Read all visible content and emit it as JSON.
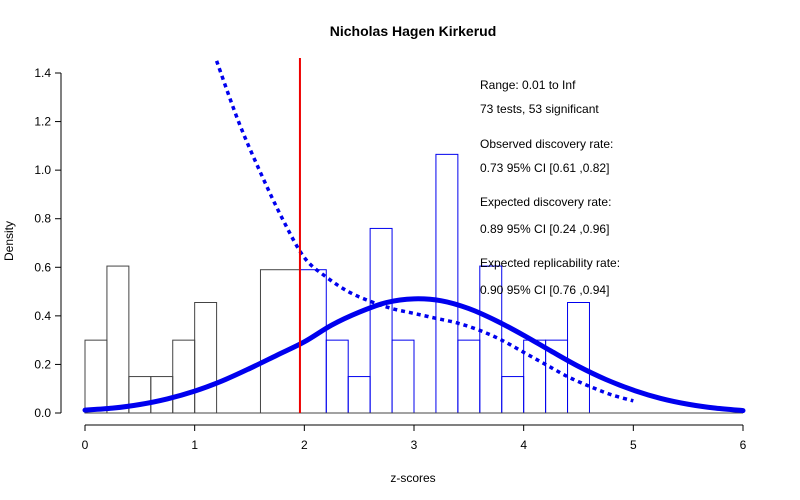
{
  "chart_data": {
    "type": "bar",
    "title": "Nicholas Hagen Kirkerud",
    "xlabel": "z-scores",
    "ylabel": "Density",
    "xlim": [
      0,
      6
    ],
    "ylim": [
      0,
      1.4
    ],
    "x_ticks": [
      "0",
      "1",
      "2",
      "3",
      "4",
      "5",
      "6"
    ],
    "y_ticks": [
      "0.0",
      "0.2",
      "0.4",
      "0.6",
      "0.8",
      "1.0",
      "1.2",
      "1.4"
    ],
    "grid": false,
    "colors": {
      "nonsig_bars": "#444444",
      "sig_bars": "#0000ee",
      "threshold_line": "#ee0000",
      "curve": "#0000ee"
    },
    "threshold": 1.96,
    "histogram": {
      "bin_width": 0.2,
      "bins": [
        {
          "x0": 0.0,
          "x1": 0.2,
          "density": 0.3,
          "significant": false
        },
        {
          "x0": 0.2,
          "x1": 0.4,
          "density": 0.605,
          "significant": false
        },
        {
          "x0": 0.4,
          "x1": 0.6,
          "density": 0.15,
          "significant": false
        },
        {
          "x0": 0.6,
          "x1": 0.8,
          "density": 0.15,
          "significant": false
        },
        {
          "x0": 0.8,
          "x1": 1.0,
          "density": 0.3,
          "significant": false
        },
        {
          "x0": 1.0,
          "x1": 1.2,
          "density": 0.455,
          "significant": false
        },
        {
          "x0": 1.6,
          "x1": 1.96,
          "density": 0.59,
          "significant": false
        },
        {
          "x0": 1.96,
          "x1": 2.2,
          "density": 0.59,
          "significant": true
        },
        {
          "x0": 2.2,
          "x1": 2.4,
          "density": 0.3,
          "significant": true
        },
        {
          "x0": 2.4,
          "x1": 2.6,
          "density": 0.15,
          "significant": true
        },
        {
          "x0": 2.6,
          "x1": 2.8,
          "density": 0.76,
          "significant": true
        },
        {
          "x0": 2.8,
          "x1": 3.0,
          "density": 0.3,
          "significant": true
        },
        {
          "x0": 3.2,
          "x1": 3.4,
          "density": 1.065,
          "significant": true
        },
        {
          "x0": 3.4,
          "x1": 3.6,
          "density": 0.3,
          "significant": true
        },
        {
          "x0": 3.6,
          "x1": 3.8,
          "density": 0.605,
          "significant": true
        },
        {
          "x0": 3.8,
          "x1": 4.0,
          "density": 0.15,
          "significant": true
        },
        {
          "x0": 4.0,
          "x1": 4.2,
          "density": 0.3,
          "significant": true
        },
        {
          "x0": 4.2,
          "x1": 4.4,
          "density": 0.3,
          "significant": true
        },
        {
          "x0": 4.4,
          "x1": 4.6,
          "density": 0.455,
          "significant": true
        }
      ]
    },
    "solid_curve": {
      "x": [
        0.0,
        0.25,
        0.5,
        0.75,
        1.0,
        1.25,
        1.5,
        1.75,
        2.0,
        2.25,
        2.5,
        2.75,
        3.0,
        3.25,
        3.5,
        3.75,
        4.0,
        4.25,
        4.5,
        4.75,
        5.0,
        5.25,
        5.5,
        5.75,
        6.0
      ],
      "y": [
        0.012,
        0.02,
        0.035,
        0.058,
        0.09,
        0.132,
        0.183,
        0.238,
        0.293,
        0.362,
        0.415,
        0.455,
        0.47,
        0.462,
        0.43,
        0.38,
        0.32,
        0.255,
        0.192,
        0.138,
        0.094,
        0.06,
        0.036,
        0.02,
        0.01
      ]
    },
    "dotted_curve": {
      "x": [
        1.2,
        1.4,
        1.6,
        1.8,
        2.0,
        2.2,
        2.4,
        2.6,
        2.8,
        3.0,
        3.2,
        3.4,
        3.6,
        3.8,
        4.0,
        4.2,
        4.4,
        4.6,
        4.8,
        5.0
      ],
      "y": [
        1.45,
        1.2,
        0.99,
        0.8,
        0.64,
        0.56,
        0.5,
        0.46,
        0.43,
        0.41,
        0.39,
        0.37,
        0.34,
        0.3,
        0.25,
        0.2,
        0.15,
        0.11,
        0.075,
        0.05
      ]
    },
    "annotations": [
      "Range: 0.01 to Inf",
      "73 tests, 53 significant",
      "Observed discovery rate:",
      "0.73  95% CI [0.61 ,0.82]",
      "Expected discovery rate:",
      "0.89  95% CI [0.24 ,0.96]",
      "Expected replicability rate:",
      "0.90  95% CI [0.76 ,0.94]"
    ]
  }
}
